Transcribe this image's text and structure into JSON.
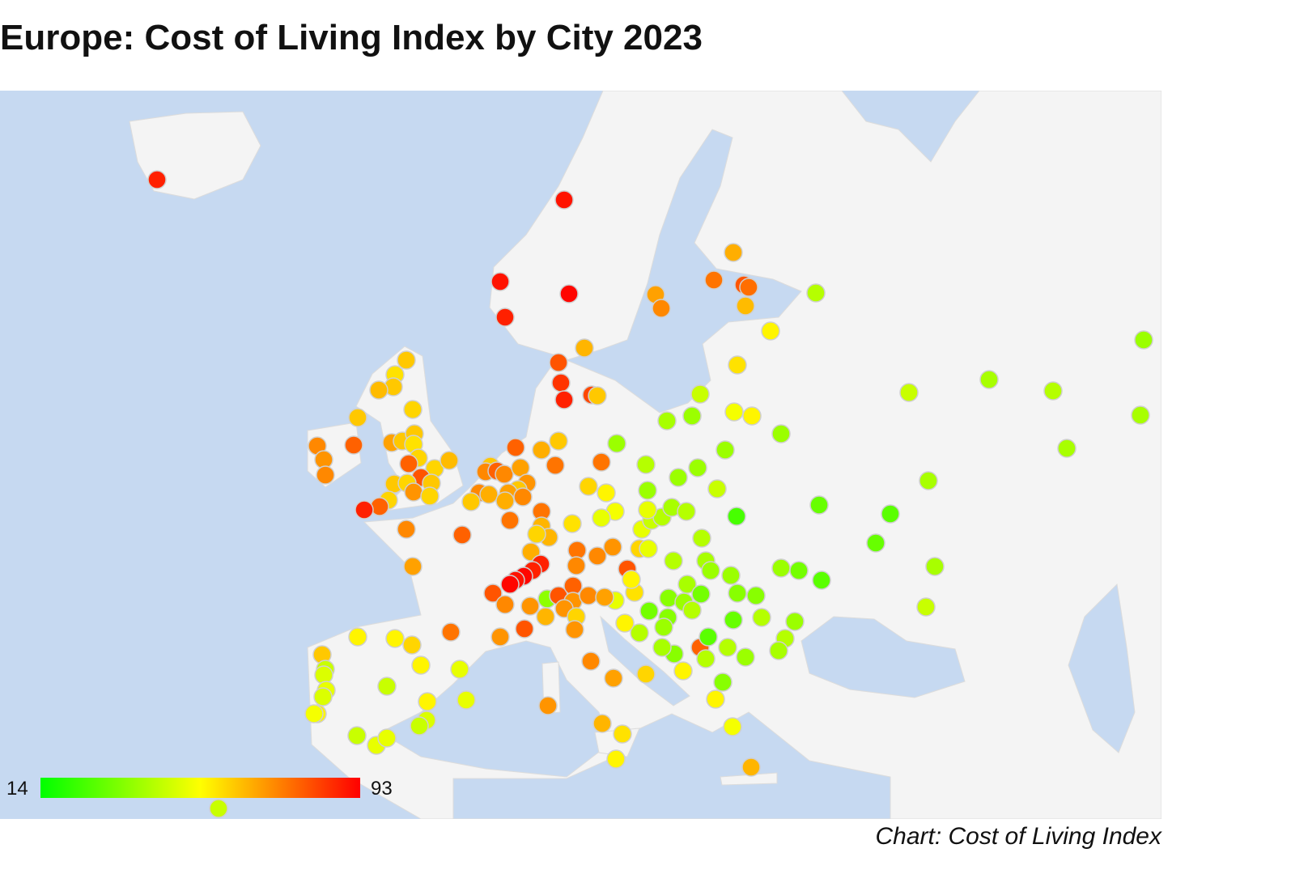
{
  "title": "Europe: Cost of Living Index by City 2023",
  "credit": "Chart: Cost of Living Index",
  "colors": {
    "sea": "#c6d9f1",
    "land": "#f4f4f4",
    "border": "#dcdcdc",
    "low": "#00ff00",
    "mid": "#ffff00",
    "high": "#ff0000"
  },
  "chart_data": {
    "type": "scatter",
    "subtype": "geo-bubble-map",
    "region": "Europe",
    "color_axis": {
      "min": 14,
      "max": 93,
      "min_label": "14",
      "max_label": "93"
    },
    "values": [
      88,
      90,
      90,
      88,
      92,
      66,
      75,
      80,
      76,
      64,
      42,
      55,
      68,
      72,
      65,
      80,
      85,
      88,
      82,
      62,
      58,
      45,
      52,
      55,
      40,
      38,
      38,
      38,
      38,
      45,
      40,
      42,
      38,
      40,
      40,
      40,
      30,
      28,
      30,
      25,
      40,
      45,
      28,
      38,
      32,
      62,
      58,
      62,
      64,
      60,
      62,
      72,
      78,
      70,
      72,
      68,
      62,
      62,
      58,
      60,
      78,
      60,
      64,
      80,
      62,
      62,
      60,
      70,
      60,
      60,
      78,
      88,
      72,
      78,
      62,
      72,
      78,
      72,
      68,
      70,
      62,
      68,
      72,
      66,
      62,
      66,
      72,
      66,
      62,
      75,
      75,
      60,
      55,
      52,
      50,
      78,
      75,
      75,
      65,
      65,
      60,
      58,
      68,
      66,
      88,
      88,
      92,
      90,
      92,
      80,
      72,
      75,
      70,
      80,
      75,
      72,
      72,
      70,
      80,
      60,
      50,
      50,
      45,
      42,
      40,
      42,
      42,
      42,
      40,
      38,
      38,
      35,
      35,
      42,
      38,
      42,
      40,
      30,
      42,
      38,
      40,
      32,
      35,
      38,
      42,
      35,
      32,
      38,
      42,
      55,
      50,
      58,
      55,
      50,
      42,
      38,
      38,
      38,
      45,
      36,
      80,
      78,
      70,
      72,
      68,
      70,
      65,
      70,
      60,
      70,
      72,
      68,
      60,
      70,
      65,
      58,
      55,
      78,
      28,
      35,
      40,
      55,
      42,
      35,
      55,
      52,
      65,
      55,
      55,
      60,
      55,
      50,
      62,
      45,
      48,
      50,
      48,
      45,
      55,
      50,
      55,
      52,
      45,
      50,
      50,
      48,
      45,
      45,
      45
    ]
  }
}
